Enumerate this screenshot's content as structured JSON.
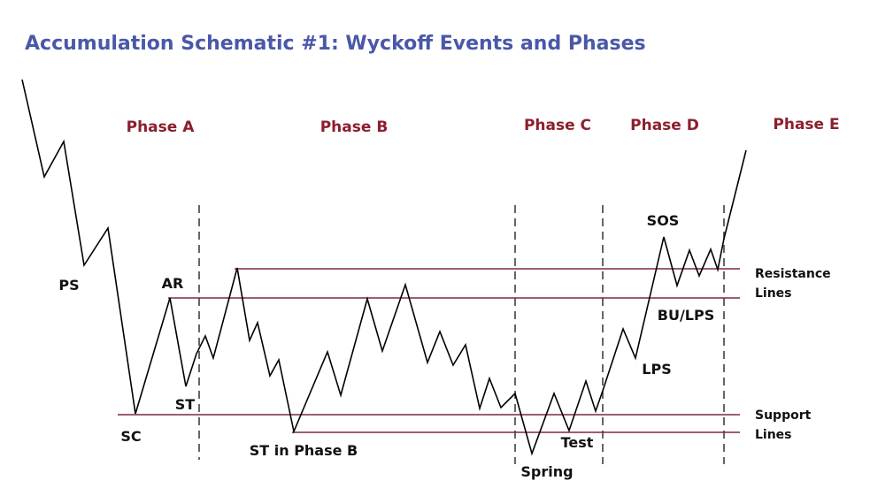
{
  "title": "Accumulation Schematic #1: Wyckoff Events and Phases",
  "phases": [
    "Phase A",
    "Phase B",
    "Phase C",
    "Phase D",
    "Phase E"
  ],
  "events": {
    "ps": "PS",
    "ar": "AR",
    "st": "ST",
    "sc": "SC",
    "st_phase_b": "ST in Phase B",
    "spring": "Spring",
    "test": "Test",
    "lps": "LPS",
    "bu_lps": "BU/LPS",
    "sos": "SOS"
  },
  "line_labels": {
    "resistance": [
      "Resistance",
      "Lines"
    ],
    "support": [
      "Support",
      "Lines"
    ]
  }
}
